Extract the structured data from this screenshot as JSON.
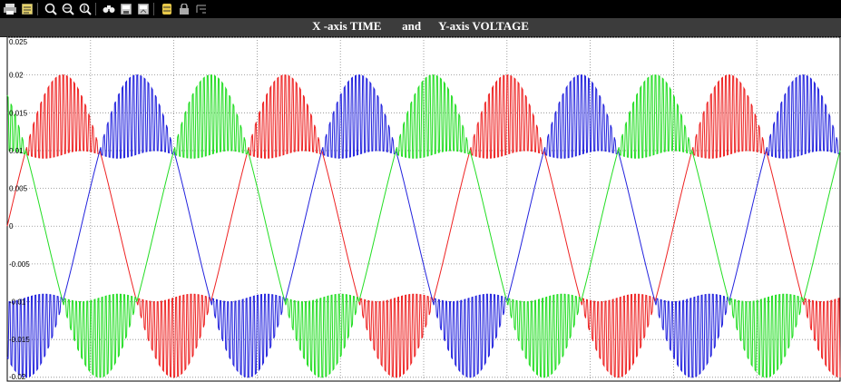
{
  "window": {
    "title": "X -axis TIME       and      Y-axis VOLTAGE"
  },
  "toolbar": {
    "icons": [
      "print-icon",
      "parameters-icon",
      "zoom-icon",
      "zoom-x-icon",
      "zoom-y-icon",
      "autoscale-icon",
      "save-axes-icon",
      "restore-axes-icon",
      "float-scope-icon",
      "lock-icon",
      "signal-selection-icon"
    ]
  },
  "chart_data": {
    "type": "line",
    "title": "X -axis TIME       and      Y-axis VOLTAGE",
    "xlabel": "",
    "ylabel": "",
    "ylim": [
      -0.0205,
      0.025
    ],
    "yticks": [
      0.025,
      0.02,
      0.015,
      0.01,
      0.005,
      0,
      -0.005,
      -0.01,
      -0.015,
      -0.02
    ],
    "ytick_labels": [
      "0.025",
      "0.02",
      "0.015",
      "0.01",
      "0.005",
      "0",
      "-0.005",
      "-0.01",
      "-0.015",
      "-0.02"
    ],
    "grid": true,
    "x_range": [
      0,
      1
    ],
    "num_cycles": 3.75,
    "series": [
      {
        "color": "#ee2222",
        "phase_deg": 0,
        "values_peak": 0.02,
        "clip_level": 0.01
      },
      {
        "color": "#2222dd",
        "phase_deg": -120,
        "values_peak": 0.02,
        "clip_level": 0.01
      },
      {
        "color": "#22dd22",
        "phase_deg": 120,
        "values_peak": 0.02,
        "clip_level": 0.01
      }
    ]
  }
}
